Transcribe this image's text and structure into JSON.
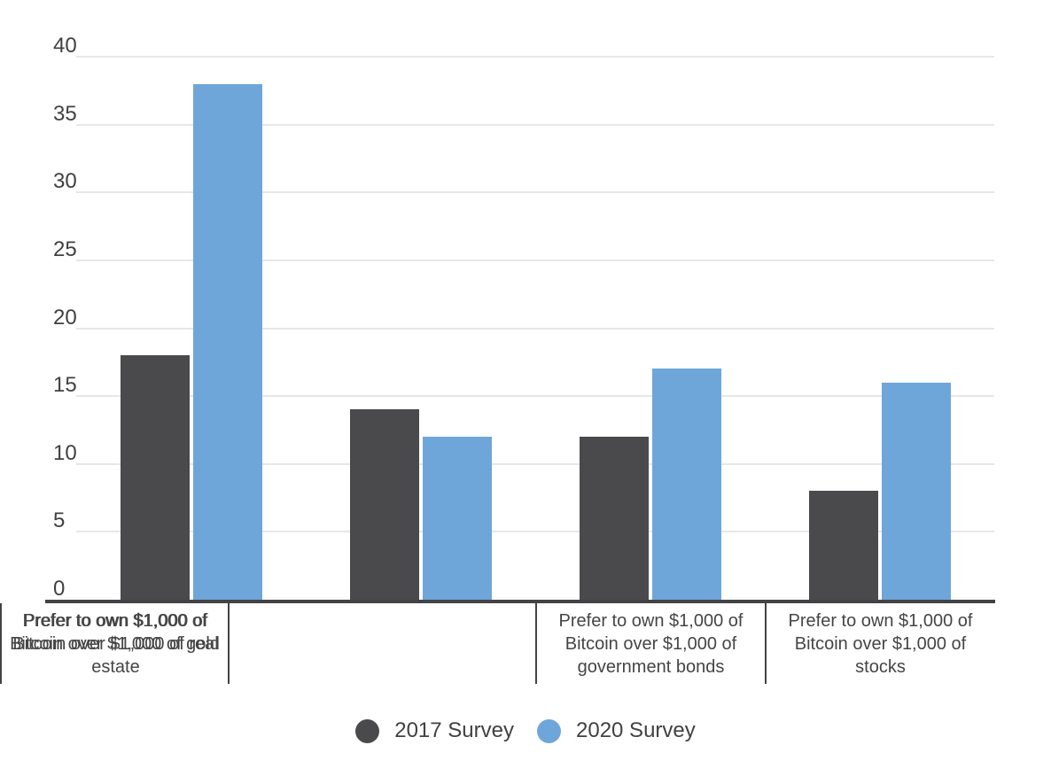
{
  "chart_data": {
    "type": "bar",
    "title": "",
    "xlabel": "",
    "ylabel": "",
    "categories": [
      "Prefer to own $1,000 of Bitcoin over $1,000 of government bonds",
      "Prefer to own $1,000 of Bitcoin over $1,000 of stocks",
      "Prefer to own $1,000 of Bitcoin over $1,000 of real estate",
      "Prefer to own $1,000 of Bitcoin over $1,000 of gold"
    ],
    "series": [
      {
        "name": "2017 Survey",
        "color": "#4a4a4c",
        "values": [
          18,
          14,
          12,
          8
        ]
      },
      {
        "name": "2020 Survey",
        "color": "#6fa6d9",
        "values": [
          38,
          12,
          17,
          16
        ]
      }
    ],
    "ylim": [
      0,
      40
    ],
    "yticks": [
      0,
      5,
      10,
      15,
      20,
      25,
      30,
      35,
      40
    ],
    "grid": true,
    "legend_position": "bottom",
    "legend_marker": "circle"
  },
  "colors": {
    "background": "#ffffff",
    "gridline": "#e7e7e7",
    "axis": "#434345",
    "tick_text": "#414141",
    "category_text": "#454545",
    "legend_text": "#414141",
    "series_2017": "#4a4a4c",
    "series_2020": "#6fa6d9"
  }
}
